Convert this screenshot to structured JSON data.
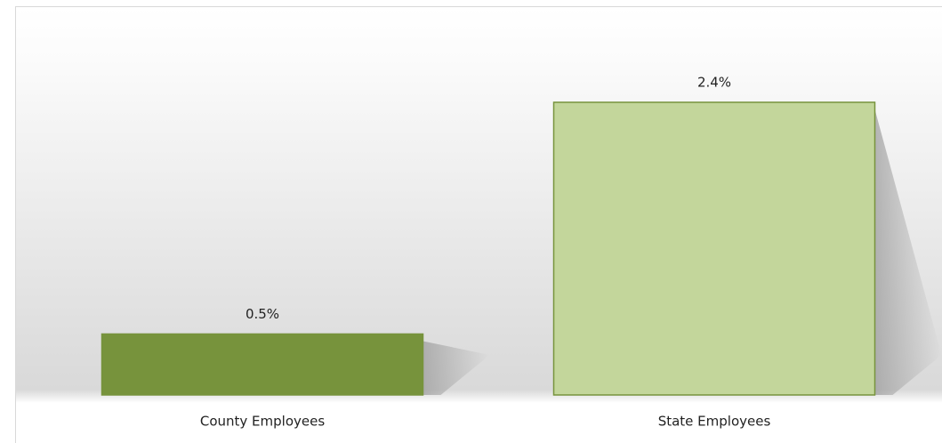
{
  "chart_data": {
    "type": "bar",
    "categories": [
      "County Employees",
      "State Employees"
    ],
    "values": [
      0.5,
      2.4
    ],
    "value_labels": [
      "0.5%",
      "2.4%"
    ],
    "colors": [
      "#77933c",
      "#c3d69b"
    ],
    "edge_color": "#77933c"
  }
}
